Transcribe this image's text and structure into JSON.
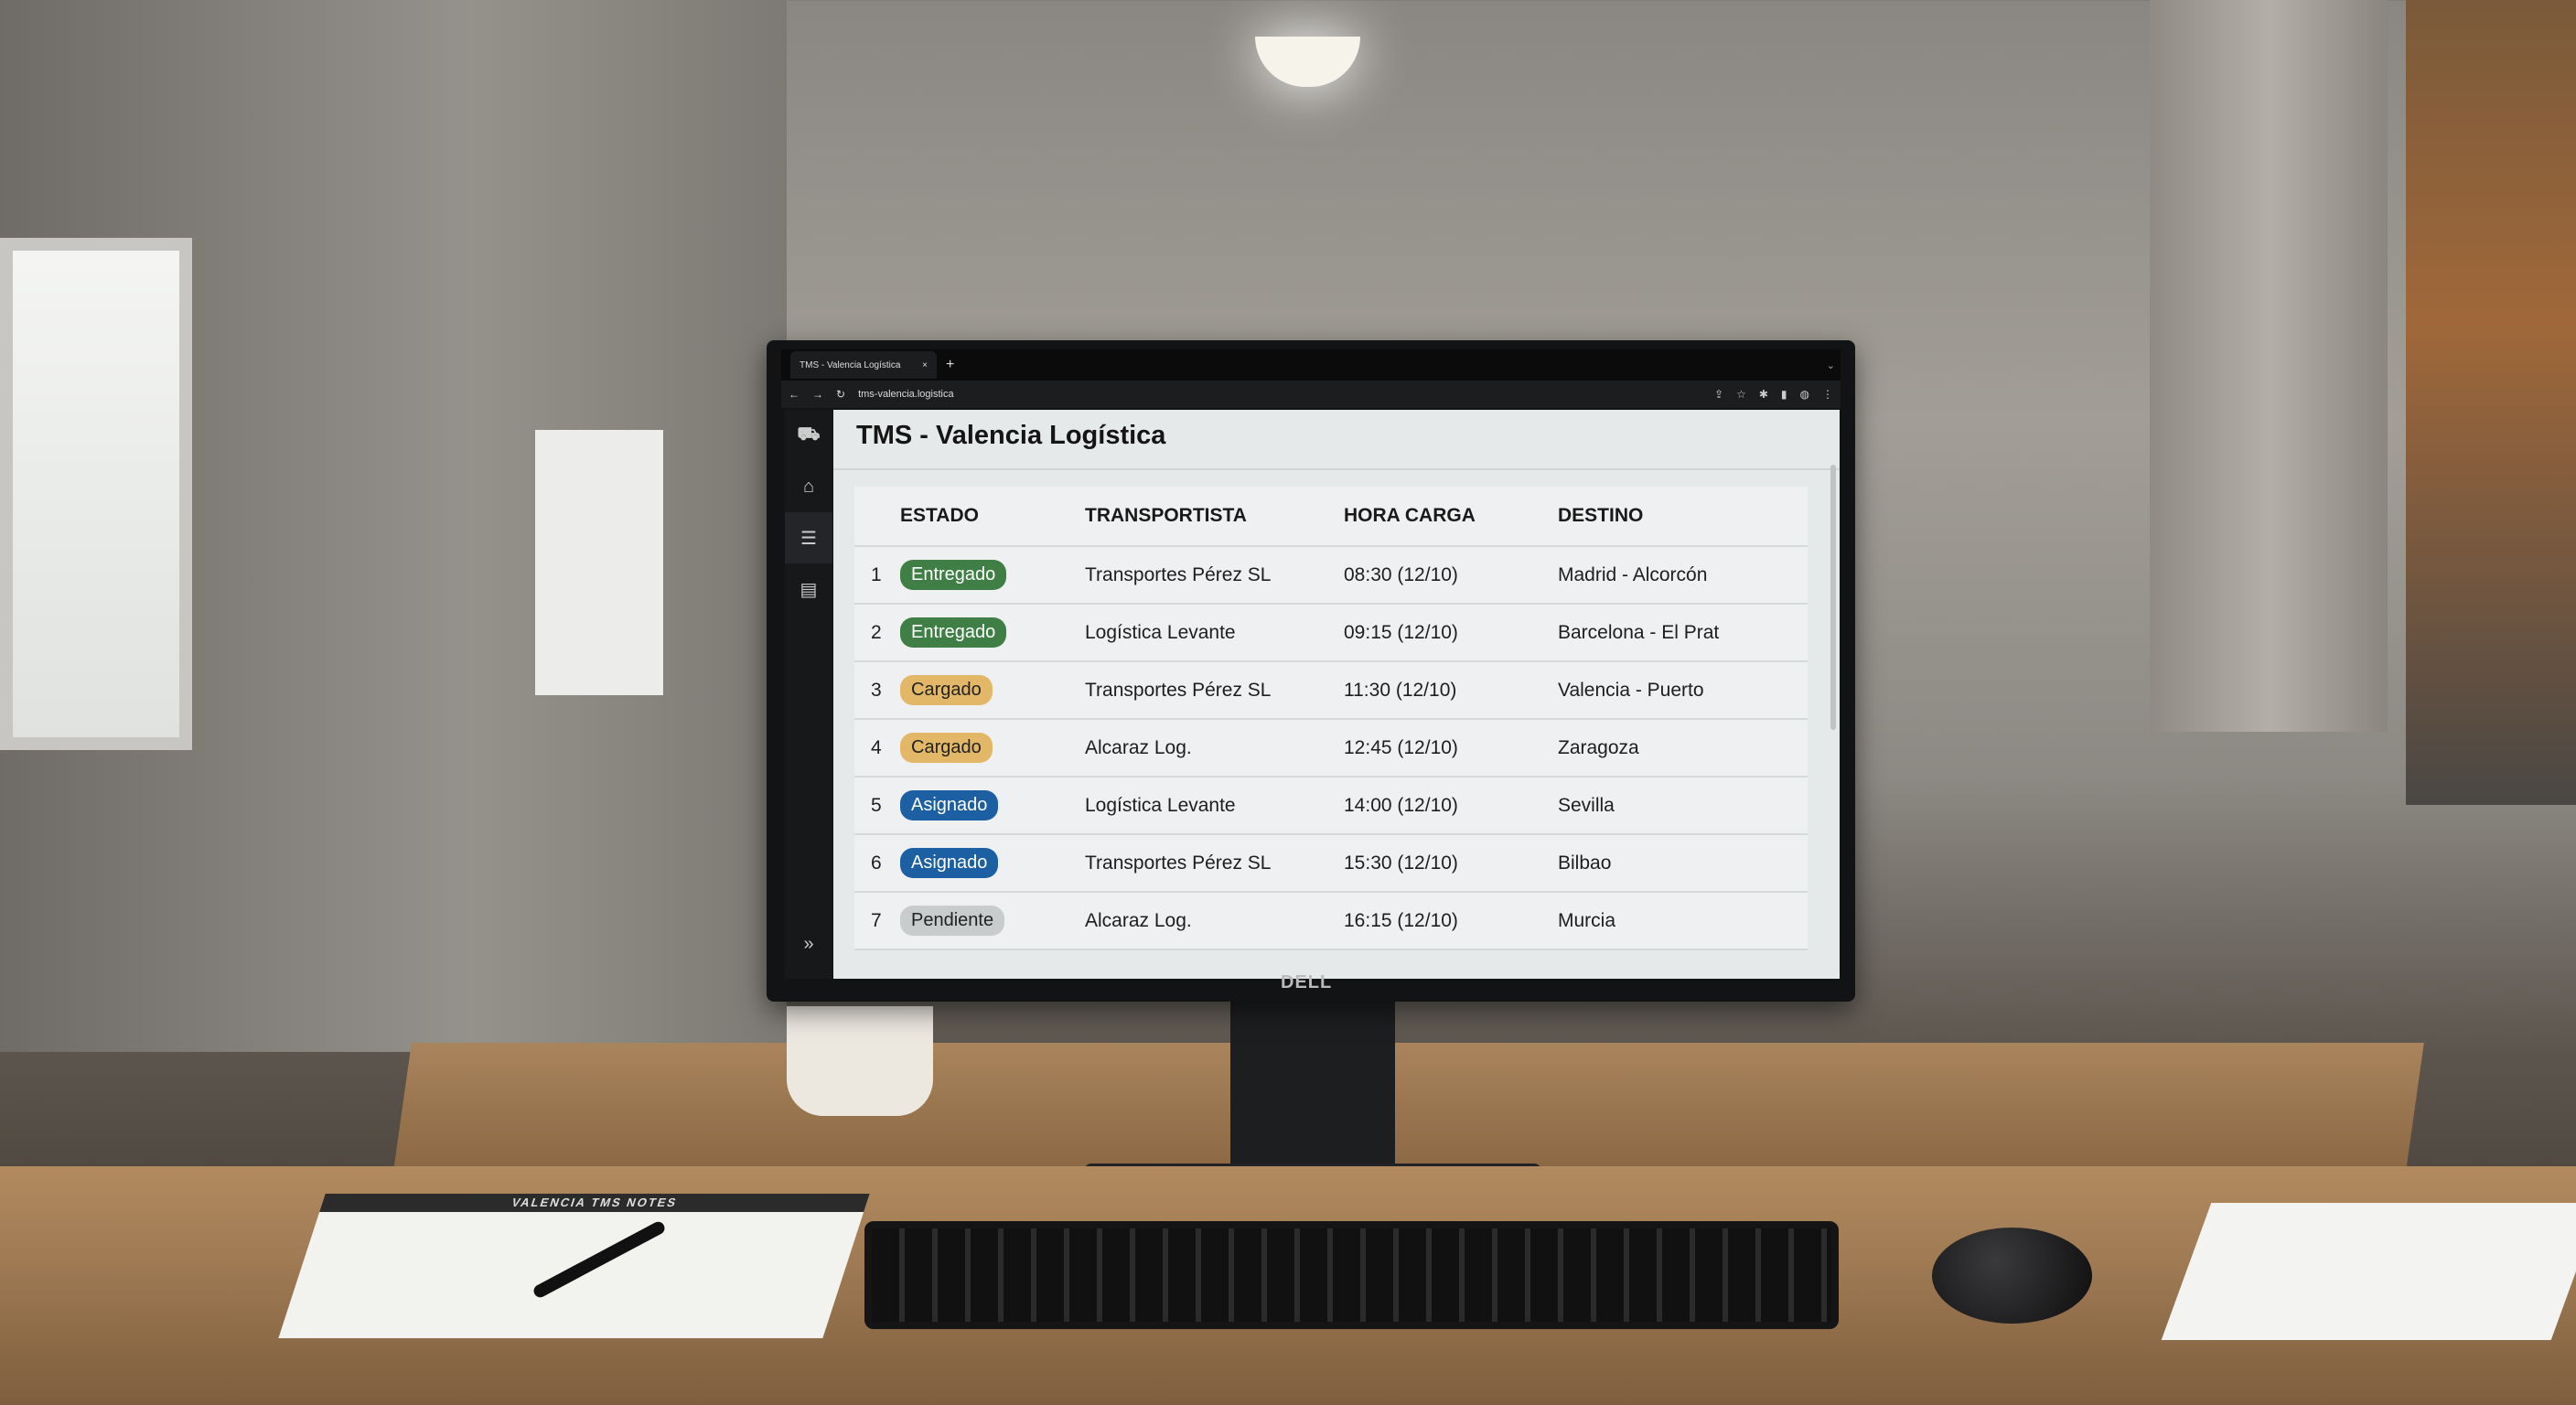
{
  "browser": {
    "tab_title": "TMS - Valencia Logística",
    "url": "tms-valencia.logistica"
  },
  "app": {
    "title": "TMS - Valencia Logística",
    "sidebar": [
      {
        "icon": "home-icon"
      },
      {
        "icon": "list-icon",
        "active": true
      },
      {
        "icon": "calendar-icon"
      }
    ],
    "expand_icon": "double-chevron-right-icon"
  },
  "table": {
    "headers": [
      "ESTADO",
      "TRANSPORTISTA",
      "HORA CARGA",
      "DESTINO"
    ],
    "rows": [
      {
        "n": "1",
        "estado": "Entregado",
        "transportista": "Transportes Pérez SL",
        "hora": "08:30 (12/10)",
        "destino": "Madrid - Alcorcón"
      },
      {
        "n": "2",
        "estado": "Entregado",
        "transportista": "Logística Levante",
        "hora": "09:15 (12/10)",
        "destino": "Barcelona - El Prat"
      },
      {
        "n": "3",
        "estado": "Cargado",
        "transportista": "Transportes Pérez SL",
        "hora": "11:30 (12/10)",
        "destino": "Valencia - Puerto"
      },
      {
        "n": "4",
        "estado": "Cargado",
        "transportista": "Alcaraz Log.",
        "hora": "12:45 (12/10)",
        "destino": "Zaragoza"
      },
      {
        "n": "5",
        "estado": "Asignado",
        "transportista": "Logística Levante",
        "hora": "14:00 (12/10)",
        "destino": "Sevilla"
      },
      {
        "n": "6",
        "estado": "Asignado",
        "transportista": "Transportes Pérez SL",
        "hora": "15:30 (12/10)",
        "destino": "Bilbao"
      },
      {
        "n": "7",
        "estado": "Pendiente",
        "transportista": "Alcaraz Log.",
        "hora": "16:15 (12/10)",
        "destino": "Murcia"
      }
    ]
  },
  "status_colors": {
    "Entregado": "#3f7f45",
    "Cargado": "#e2b768",
    "Asignado": "#1d5fa3",
    "Pendiente": "#c9cccd"
  },
  "monitor_brand": "DELL",
  "notebook_label": "VALENCIA TMS NOTES"
}
